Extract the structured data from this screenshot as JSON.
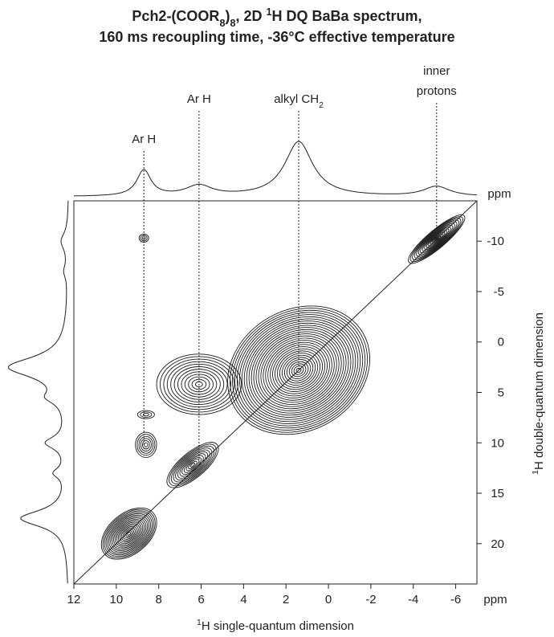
{
  "chart_data": {
    "type": "contour",
    "title": [
      [
        {
          "t": "Pch2-(COOR"
        },
        {
          "t": "8",
          "s": "sub"
        },
        {
          "t": ")"
        },
        {
          "t": "8",
          "s": "sub"
        },
        {
          "t": ", 2D "
        },
        {
          "t": "1",
          "s": "sup"
        },
        {
          "t": "H DQ BaBa spectrum,"
        }
      ],
      [
        {
          "t": "160 ms recoupling time, -36°C effective temperature"
        }
      ]
    ],
    "x_label": [
      {
        "t": "1",
        "s": "sup"
      },
      {
        "t": "H single-quantum dimension"
      }
    ],
    "y_label": [
      {
        "t": "1",
        "s": "sup"
      },
      {
        "t": "H double-quantum dimension"
      }
    ],
    "x_unit": "ppm",
    "y_unit": "ppm",
    "xlim": [
      12,
      -7
    ],
    "ylim": [
      -14,
      24
    ],
    "xticks": [
      12,
      10,
      8,
      6,
      4,
      2,
      0,
      -2,
      -4,
      -6
    ],
    "yticks": [
      -10,
      -5,
      0,
      5,
      10,
      15,
      20
    ],
    "color": "#1a1a1a",
    "annotations": [
      {
        "x": 8.7,
        "lines": [
          "Ar H"
        ]
      },
      {
        "x": 6.1,
        "lines": [
          "Ar H"
        ]
      },
      {
        "x": 1.4,
        "lines": [
          "alkyl CH"
        ],
        "sub": "2"
      },
      {
        "x": -5.1,
        "lines": [
          "inner",
          "protons"
        ]
      }
    ],
    "peaks": [
      {
        "x": 8.7,
        "y": -10.3,
        "w": 0.45,
        "h": 0.8,
        "levels": 3,
        "tilt": 0
      },
      {
        "x": -5.1,
        "y": -10.2,
        "w": 3.4,
        "h": 1.8,
        "levels": 14,
        "tilt": -40
      },
      {
        "x": 1.4,
        "y": 2.8,
        "w": 7,
        "h": 12,
        "levels": 30,
        "tilt": -30
      },
      {
        "x": 6.1,
        "y": 4.2,
        "w": 4,
        "h": 6,
        "levels": 12,
        "tilt": 0
      },
      {
        "x": 6.4,
        "y": 12.2,
        "w": 3,
        "h": 2.5,
        "levels": 12,
        "tilt": -40
      },
      {
        "x": 9.4,
        "y": 19,
        "w": 3,
        "h": 4,
        "levels": 18,
        "tilt": -40
      },
      {
        "x": 8.6,
        "y": 10.2,
        "w": 1,
        "h": 2.5,
        "levels": 6,
        "tilt": 0
      },
      {
        "x": 8.6,
        "y": 7.2,
        "w": 0.8,
        "h": 0.8,
        "levels": 3,
        "tilt": 0
      }
    ],
    "top_projection": [
      {
        "x": 8.7,
        "h": 0.45,
        "w": 0.8
      },
      {
        "x": 6.1,
        "h": 0.18,
        "w": 1.5
      },
      {
        "x": 1.4,
        "h": 0.95,
        "w": 1.6
      },
      {
        "x": -5.1,
        "h": 0.17,
        "w": 1.5
      }
    ],
    "left_projection": [
      {
        "y": -10,
        "h": 0.12,
        "w": 2
      },
      {
        "y": -7,
        "h": 0.06,
        "w": 1.5
      },
      {
        "y": 2.5,
        "h": 1,
        "w": 2.5
      },
      {
        "y": 5.5,
        "h": 0.25,
        "w": 1.5
      },
      {
        "y": 10,
        "h": 0.35,
        "w": 1.5
      },
      {
        "y": 13,
        "h": 0.2,
        "w": 1.2
      },
      {
        "y": 17.5,
        "h": 0.8,
        "w": 2
      }
    ]
  }
}
